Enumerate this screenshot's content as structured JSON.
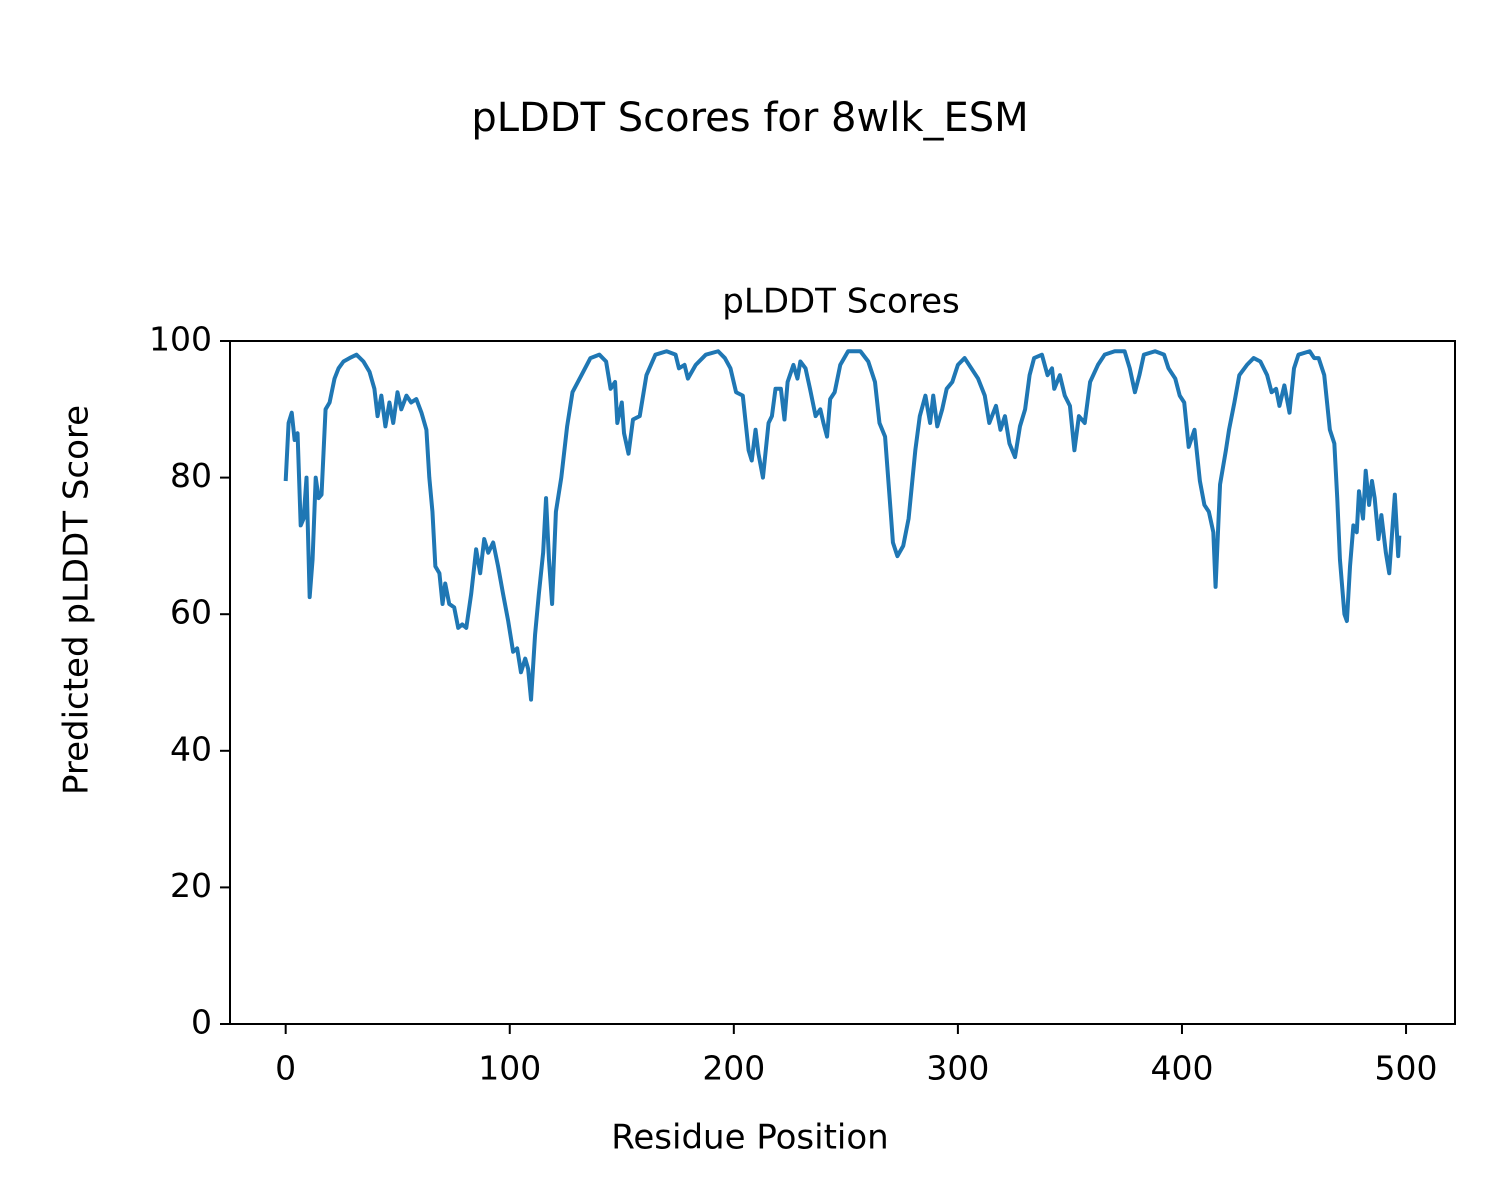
{
  "chart_data": {
    "type": "line",
    "title": "pLDDT Scores for 8wlk_ESM",
    "subtitle": "pLDDT Scores",
    "xlabel": "Residue Position",
    "ylabel": "Predicted pLDDT Score",
    "color": "#1f77b4",
    "xlim": [
      -24.85,
      521.85
    ],
    "ylim": [
      0,
      100
    ],
    "xticks": [
      0,
      100,
      200,
      300,
      400,
      500
    ],
    "yticks": [
      0,
      20,
      40,
      60,
      80,
      100
    ],
    "x": [
      0,
      1.3,
      2.7,
      4,
      5.3,
      6.7,
      8,
      9.3,
      10.7,
      12,
      13.4,
      14.7,
      16,
      17.8,
      19.6,
      21.8,
      23.6,
      25.8,
      28.5,
      31.6,
      34.7,
      37.4,
      39.6,
      41,
      42.7,
      44.5,
      46.3,
      48,
      49.9,
      51.6,
      53.9,
      56,
      58.3,
      60.6,
      62.8,
      64.1,
      65.5,
      66.8,
      68.6,
      70,
      71.2,
      73,
      75.2,
      77,
      78.8,
      80.6,
      82.8,
      85,
      86.8,
      88.6,
      90.4,
      92.6,
      94.8,
      97,
      99.3,
      101.5,
      103.3,
      105,
      106.9,
      108.2,
      109.5,
      111.3,
      113,
      114.9,
      116.2,
      117.5,
      118.9,
      120.6,
      123,
      125.6,
      128,
      132,
      136,
      140,
      143,
      145,
      147,
      148,
      150,
      151,
      153,
      155,
      158,
      161,
      165,
      170,
      174,
      175.5,
      178,
      179.5,
      183,
      187.5,
      193,
      196,
      198.5,
      201,
      204,
      206.6,
      208,
      209.7,
      211,
      213,
      215.5,
      217,
      218.6,
      221,
      222.6,
      224,
      226.6,
      228.4,
      229.7,
      232,
      234,
      236.5,
      238.6,
      240,
      241.6,
      243,
      245,
      247.5,
      251,
      256.5,
      260,
      263,
      265,
      267.5,
      270,
      271,
      273,
      275.6,
      278,
      281,
      283,
      285.5,
      287.6,
      289,
      290.8,
      293,
      295,
      297.5,
      300,
      303,
      306,
      309,
      312,
      314,
      317,
      319,
      321,
      323,
      325.5,
      327.7,
      330,
      332,
      334,
      337.5,
      340,
      342,
      343,
      345.5,
      347.7,
      350,
      352,
      354,
      356.6,
      359,
      362.5,
      365.5,
      370,
      374.4,
      376.7,
      379,
      381,
      383,
      388,
      392,
      394,
      397,
      399,
      401,
      403,
      405.6,
      408,
      410,
      412,
      414,
      415,
      417,
      419.6,
      421,
      423.4,
      425.6,
      429,
      432,
      435,
      438,
      440,
      442,
      443.5,
      445.7,
      448,
      450,
      452,
      457,
      459,
      461,
      463.5,
      466,
      468,
      469.3,
      470.5,
      472.5,
      473.6,
      475,
      476.5,
      478,
      479,
      480.8,
      482,
      483.5,
      484.8,
      486,
      487.7,
      489,
      491,
      492.5,
      493.8,
      495,
      496.5,
      497
    ],
    "values": [
      79.5,
      88,
      89.5,
      85.5,
      86.5,
      73,
      74,
      80,
      62.5,
      68,
      80,
      77,
      77.5,
      90,
      91,
      94.5,
      96,
      97,
      97.5,
      98,
      97,
      95.5,
      93,
      89,
      92,
      87.5,
      91,
      88,
      92.5,
      90,
      92,
      91,
      91.5,
      89.5,
      87,
      80,
      75,
      67,
      66,
      61.5,
      64.5,
      61.5,
      61,
      58,
      58.5,
      58,
      63,
      69.5,
      66,
      71,
      69,
      70.5,
      67,
      63,
      59,
      54.5,
      55,
      51.5,
      53.5,
      52,
      47.5,
      57,
      63,
      69,
      77,
      68,
      61.5,
      75,
      80,
      87.5,
      92.5,
      95,
      97.5,
      98,
      97,
      93,
      94,
      88,
      91,
      86.5,
      83.5,
      88.5,
      89,
      95,
      98,
      98.5,
      98,
      96,
      96.5,
      94.5,
      96.5,
      98,
      98.5,
      97.5,
      96,
      92.5,
      92,
      84,
      82.5,
      87,
      83.5,
      80,
      88,
      89,
      93,
      93,
      88.5,
      94,
      96.5,
      94.5,
      97,
      96,
      93,
      89,
      90,
      88,
      86,
      91.5,
      92.5,
      96.5,
      98.5,
      98.5,
      97,
      94,
      88,
      86,
      75,
      70.5,
      68.5,
      70,
      74,
      84,
      89,
      92,
      88,
      92,
      87.5,
      90,
      93,
      94,
      96.5,
      97.5,
      96,
      94.5,
      92,
      88,
      90.5,
      87,
      89,
      85,
      83,
      87.5,
      90,
      95,
      97.5,
      98,
      95,
      96,
      93,
      95,
      92,
      90.5,
      84,
      89,
      88,
      94,
      96.5,
      98,
      98.5,
      98.5,
      96,
      92.5,
      95,
      98,
      98.5,
      98,
      96,
      94.5,
      92,
      91,
      84.5,
      87,
      79.5,
      76,
      75,
      72,
      64,
      79,
      84,
      87,
      91,
      95,
      96.5,
      97.5,
      97,
      95,
      92.5,
      93,
      90.5,
      93.5,
      89.5,
      96,
      98,
      98.5,
      97.5,
      97.5,
      95,
      87,
      85,
      77,
      68,
      60,
      59,
      67,
      73,
      72,
      78,
      74,
      81,
      76,
      79.5,
      77,
      71,
      74.5,
      69,
      66,
      72,
      77.5,
      68.5,
      71.5
    ]
  }
}
